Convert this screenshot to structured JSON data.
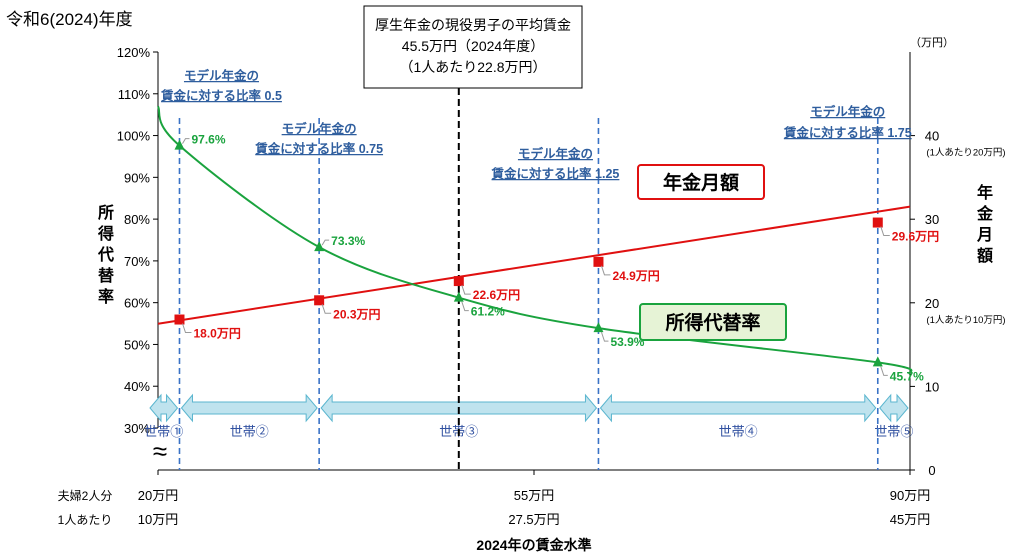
{
  "title": "令和6(2024)年度",
  "callout": {
    "line1": "厚生年金の現役男子の平均賃金",
    "line2": "45.5万円（2024年度）",
    "line3": "（1人あたり22.8万円）"
  },
  "chart_data": {
    "type": "line",
    "x_unit": "夫婦2人分の賃金（万円）",
    "x": [
      22,
      35,
      48,
      61,
      87
    ],
    "xlim": [
      20,
      90
    ],
    "x_ticks": [
      {
        "x": 20,
        "row1": "20万円",
        "row2": "10万円"
      },
      {
        "x": 55,
        "row1": "55万円",
        "row2": "27.5万円"
      },
      {
        "x": 90,
        "row1": "90万円",
        "row2": "45万円"
      }
    ],
    "x_row_labels": {
      "row1": "夫婦2人分",
      "row2": "1人あたり"
    },
    "xlabel": "2024年の賃金水準",
    "ylabel_left": "所得代替率",
    "ylabel_right": "年金月額",
    "right_unit": "（万円）",
    "y_left_lim": [
      30,
      120
    ],
    "y_left_ticks": [
      "30%",
      "40%",
      "50%",
      "60%",
      "70%",
      "80%",
      "90%",
      "100%",
      "110%",
      "120%"
    ],
    "y_right_lim": [
      0,
      50
    ],
    "y_right_ticks": [
      "0",
      "10",
      "20",
      "30",
      "40"
    ],
    "y_right_notes": [
      {
        "y": 40,
        "text": "(1人あたり20万円)"
      },
      {
        "y": 20,
        "text": "(1人あたり10万円)"
      }
    ],
    "series": [
      {
        "name": "年金月額",
        "axis": "right",
        "color": "#e01010",
        "values": [
          18.0,
          20.3,
          22.6,
          24.9,
          29.6
        ],
        "labels": [
          "18.0万円",
          "20.3万円",
          "22.6万円",
          "24.9万円",
          "29.6万円"
        ],
        "curve_start": 17.5,
        "curve_end": 31.5
      },
      {
        "name": "所得代替率",
        "axis": "left",
        "color": "#1aa33e",
        "values": [
          97.6,
          73.3,
          61.2,
          53.9,
          45.7
        ],
        "labels": [
          "97.6%",
          "73.3%",
          "61.2%",
          "53.9%",
          "45.7%"
        ],
        "curve_start": 107,
        "curve_end": 43
      }
    ],
    "ratio_annotations": [
      {
        "x": 22,
        "l1": "モデル年金の",
        "l2": "賃金に対する比率 0.5"
      },
      {
        "x": 35,
        "l1": "モデル年金の",
        "l2": "賃金に対する比率 0.75"
      },
      {
        "x": 61,
        "l1": "モデル年金の",
        "l2": "賃金に対する比率 1.25"
      },
      {
        "x": 87,
        "l1": "モデル年金の",
        "l2": "賃金に対する比率 1.75"
      }
    ],
    "average_wage_x": 48,
    "households": [
      "世帯①",
      "世帯②",
      "世帯③",
      "世帯④",
      "世帯⑤"
    ],
    "household_bounds": [
      20,
      22,
      35,
      61,
      87,
      90
    ],
    "legend_labels": {
      "pension": "年金月額",
      "ratio": "所得代替率"
    },
    "axis_break": "≈",
    "grid": false
  }
}
